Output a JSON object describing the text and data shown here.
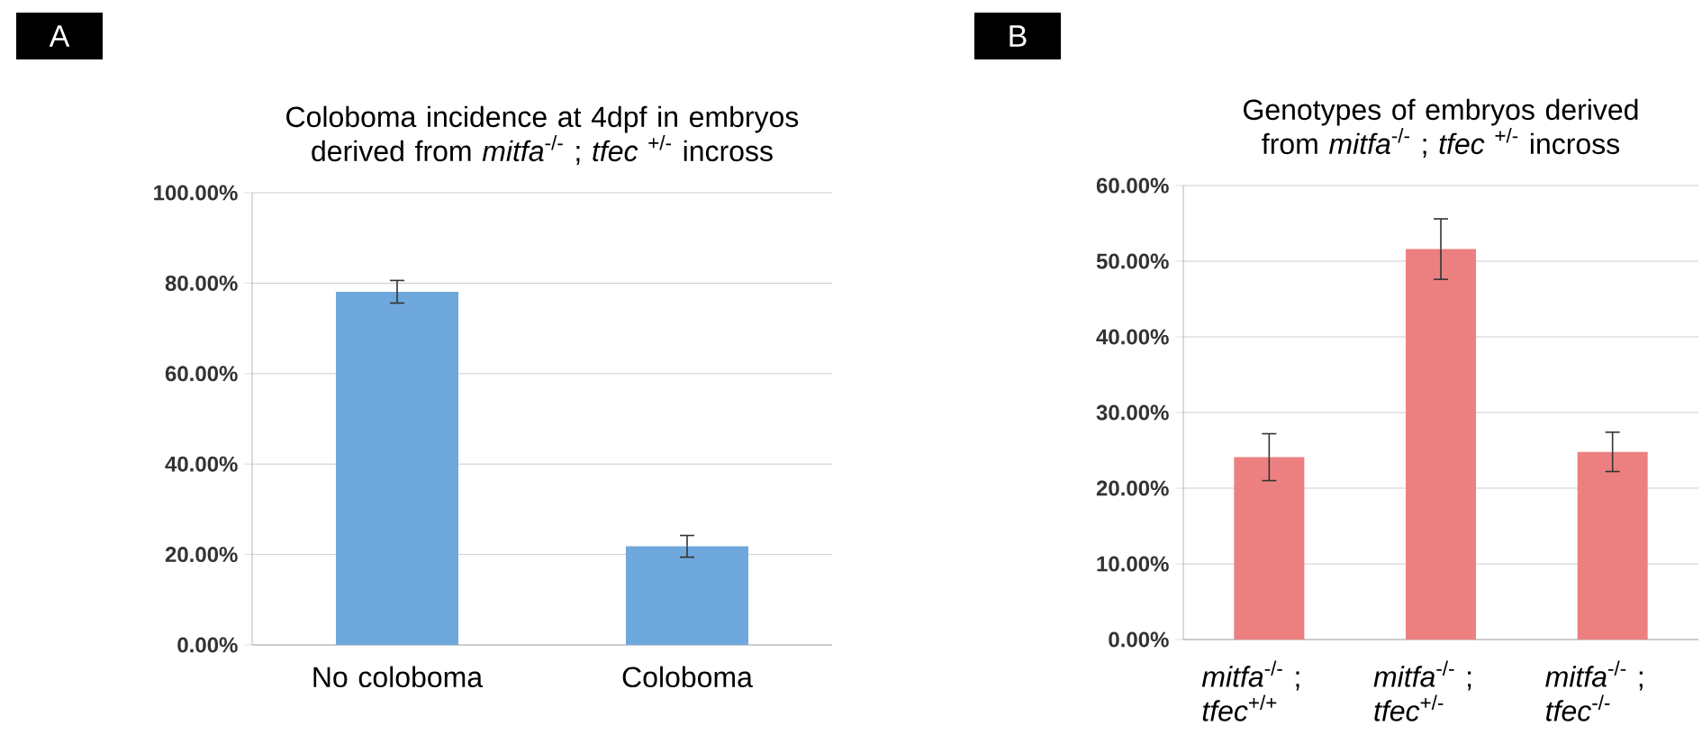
{
  "chart_data": [
    {
      "type": "bar",
      "title": "Coloboma incidence at 4dpf in embryos derived from *mitfa*$^{-/-}$ ; *tfec* $^{+/-}$ incross",
      "annotations": [
        "A"
      ],
      "categories": [
        "No coloboma",
        "Coloboma"
      ],
      "values": [
        78.1,
        21.8
      ],
      "errors": [
        2.5,
        2.4
      ],
      "color": "#6fa8dc",
      "ylim": [
        0,
        100
      ],
      "yticks": [
        {
          "value": 0,
          "label": "0.00%"
        },
        {
          "value": 20,
          "label": "20.00%"
        },
        {
          "value": 40,
          "label": "40.00%"
        },
        {
          "value": 60,
          "label": "60.00%"
        },
        {
          "value": 80,
          "label": "80.00%"
        },
        {
          "value": 100,
          "label": "100.00%"
        }
      ],
      "grid": "y"
    },
    {
      "type": "bar",
      "title": "Genotypes of embryos derived from *mitfa*$^{-/-}$ ; *tfec* $^{+/-}$ incross",
      "annotations": [
        "B"
      ],
      "categories": [
        "*mitfa*$^{-/-}$ ; *tfec*$^{+/+}$",
        "*mitfa*$^{-/-}$ ; *tfec*$^{+/-}$",
        "*mitfa*$^{-/-}$ ; *tfec*$^{-/-}$"
      ],
      "values": [
        24.1,
        51.6,
        24.8
      ],
      "errors": [
        3.1,
        4.0,
        2.6
      ],
      "color": "#ec8080",
      "ylim": [
        0,
        60
      ],
      "yticks": [
        {
          "value": 0,
          "label": "0.00%"
        },
        {
          "value": 10,
          "label": "10.00%"
        },
        {
          "value": 20,
          "label": "20.00%"
        },
        {
          "value": 30,
          "label": "30.00%"
        },
        {
          "value": 40,
          "label": "40.00%"
        },
        {
          "value": 50,
          "label": "50.00%"
        },
        {
          "value": 60,
          "label": "60.00%"
        }
      ],
      "grid": "y"
    }
  ]
}
